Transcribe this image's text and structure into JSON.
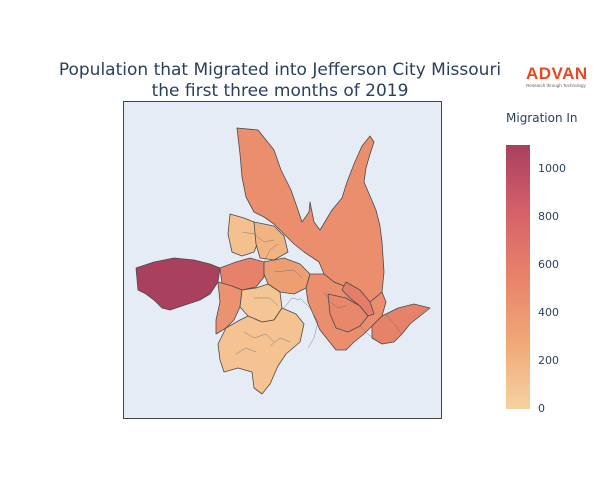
{
  "title": {
    "line1": "Population that Migrated into Jefferson City Missouri",
    "line2": "the first three months of 2019"
  },
  "logo": {
    "word": "ADVAN",
    "tagline": "Research through Technology"
  },
  "colorbar": {
    "title": "Migration In",
    "min": 0,
    "max": 1100,
    "ticks": [
      "0",
      "200",
      "400",
      "600",
      "800",
      "1000"
    ],
    "colorscale": [
      "#f6d2a0",
      "#f0a877",
      "#e8836a",
      "#d5606a",
      "#a8405e"
    ]
  },
  "regions": [
    {
      "name": "north-region",
      "value": 470
    },
    {
      "name": "west-region",
      "value": 1100
    },
    {
      "name": "west-central-region",
      "value": 560
    },
    {
      "name": "south-west-region",
      "value": 430
    },
    {
      "name": "east-region-1",
      "value": 470
    },
    {
      "name": "east-region-2",
      "value": 560
    },
    {
      "name": "east-region-3",
      "value": 520
    },
    {
      "name": "east-region-4",
      "value": 600
    },
    {
      "name": "south-region",
      "value": 100
    },
    {
      "name": "center-1",
      "value": 120
    },
    {
      "name": "center-2",
      "value": 200
    },
    {
      "name": "center-3",
      "value": 350
    },
    {
      "name": "center-4",
      "value": 80
    }
  ]
}
